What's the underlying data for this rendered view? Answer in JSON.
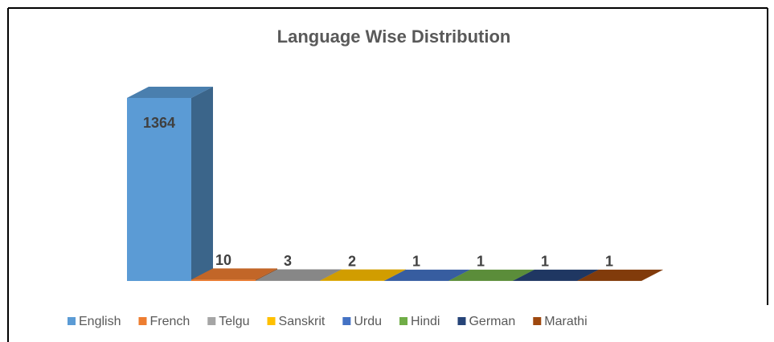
{
  "chart_data": {
    "type": "bar",
    "title": "Language Wise Distribution",
    "categories": [
      null
    ],
    "series": [
      {
        "name": "English",
        "color": "#5b9bd5",
        "values": [
          1364
        ]
      },
      {
        "name": "French",
        "color": "#ed7d31",
        "values": [
          10
        ]
      },
      {
        "name": "Telgu",
        "color": "#a5a5a5",
        "values": [
          3
        ]
      },
      {
        "name": "Sanskrit",
        "color": "#ffc000",
        "values": [
          2
        ]
      },
      {
        "name": "Urdu",
        "color": "#4472c4",
        "values": [
          1
        ]
      },
      {
        "name": "Hindi",
        "color": "#70ad47",
        "values": [
          1
        ]
      },
      {
        "name": "German",
        "color": "#264478",
        "values": [
          1
        ]
      },
      {
        "name": "Marathi",
        "color": "#9e480e",
        "values": [
          1
        ]
      }
    ],
    "legend": "bottom"
  }
}
